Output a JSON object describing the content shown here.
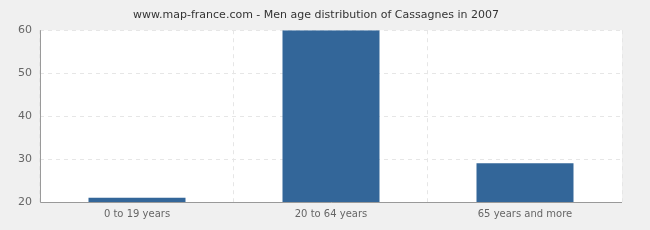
{
  "chart_data": {
    "type": "bar",
    "title": "www.map-france.com - Men age distribution of Cassagnes in 2007",
    "categories": [
      "0 to 19 years",
      "20 to 64 years",
      "65 years and more"
    ],
    "values": [
      21,
      60,
      29
    ],
    "color": "#336699",
    "ylim": [
      20,
      60
    ],
    "yticks": [
      20,
      30,
      40,
      50,
      60
    ],
    "grid": true
  }
}
